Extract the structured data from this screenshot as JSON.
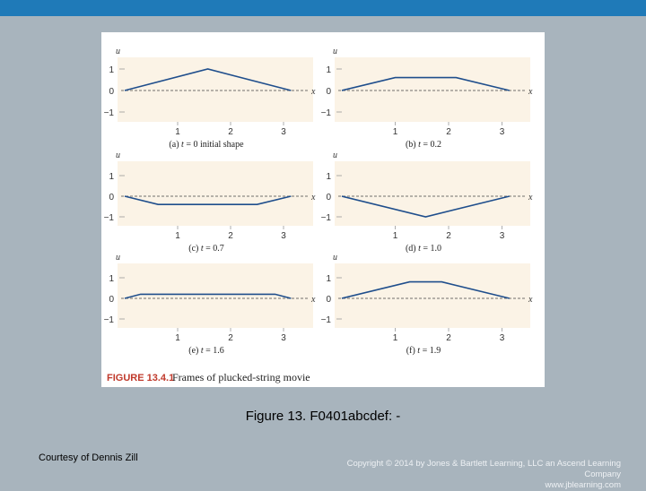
{
  "slide": {
    "caption": "Figure 13. F0401abcdef: -",
    "courtesy": "Courtesy of Dennis Zill",
    "copyright_line1": "Copyright © 2014 by Jones & Bartlett Learning, LLC an Ascend Learning Company",
    "copyright_line2": "www.jblearning.com",
    "figure_label": "FIGURE 13.4.1",
    "figure_title": "Frames of plucked-string movie",
    "colors": {
      "top_bar": "#1f7ab8",
      "background": "#a8b4bd",
      "curve": "#1f4e8c",
      "figure_label": "#c0392b",
      "panel_fill": "#fbf3e6"
    }
  },
  "chart_data": [
    {
      "type": "line",
      "panel": "a",
      "caption_prefix": "(a)",
      "caption_var": "t",
      "caption_rest": " = 0 initial shape",
      "xlabel": "x",
      "ylabel": "u",
      "xlim": [
        0,
        3.3
      ],
      "ylim": [
        -1.3,
        1.3
      ],
      "x_ticks": [
        "1",
        "2",
        "3"
      ],
      "y_ticks": [
        "1",
        "0",
        "−1"
      ],
      "x": [
        0,
        1.57,
        3.14
      ],
      "y": [
        0,
        1,
        0
      ]
    },
    {
      "type": "line",
      "panel": "b",
      "caption_prefix": "(b)",
      "caption_var": "t",
      "caption_rest": " = 0.2",
      "xlabel": "x",
      "ylabel": "u",
      "xlim": [
        0,
        3.3
      ],
      "ylim": [
        -1.3,
        1.3
      ],
      "x_ticks": [
        "1",
        "2",
        "3"
      ],
      "y_ticks": [
        "1",
        "0",
        "−1"
      ],
      "x": [
        0,
        1,
        2.14,
        3.14
      ],
      "y": [
        0,
        0.6,
        0.6,
        0
      ]
    },
    {
      "type": "line",
      "panel": "c",
      "caption_prefix": "(c)",
      "caption_var": "t",
      "caption_rest": " = 0.7",
      "xlabel": "x",
      "ylabel": "u",
      "xlim": [
        0,
        3.3
      ],
      "ylim": [
        -1.3,
        1.3
      ],
      "x_ticks": [
        "1",
        "2",
        "3"
      ],
      "y_ticks": [
        "1",
        "0",
        "−1"
      ],
      "x": [
        0,
        0.63,
        2.5,
        3.14
      ],
      "y": [
        0,
        -0.4,
        -0.4,
        0
      ]
    },
    {
      "type": "line",
      "panel": "d",
      "caption_prefix": "(d)",
      "caption_var": "t",
      "caption_rest": " = 1.0",
      "xlabel": "x",
      "ylabel": "u",
      "xlim": [
        0,
        3.3
      ],
      "ylim": [
        -1.3,
        1.3
      ],
      "x_ticks": [
        "1",
        "2",
        "3"
      ],
      "y_ticks": [
        "1",
        "0",
        "−1"
      ],
      "x": [
        0,
        1.57,
        3.14
      ],
      "y": [
        0,
        -1,
        0
      ]
    },
    {
      "type": "line",
      "panel": "e",
      "caption_prefix": "(e)",
      "caption_var": "t",
      "caption_rest": " = 1.6",
      "xlabel": "x",
      "ylabel": "u",
      "xlim": [
        0,
        3.3
      ],
      "ylim": [
        -1.3,
        1.3
      ],
      "x_ticks": [
        "1",
        "2",
        "3"
      ],
      "y_ticks": [
        "1",
        "0",
        "−1"
      ],
      "x": [
        0,
        0.3,
        2.84,
        3.14
      ],
      "y": [
        0,
        0.2,
        0.2,
        0
      ]
    },
    {
      "type": "line",
      "panel": "f",
      "caption_prefix": "(f)",
      "caption_var": "t",
      "caption_rest": " = 1.9",
      "xlabel": "x",
      "ylabel": "u",
      "xlim": [
        0,
        3.3
      ],
      "ylim": [
        -1.3,
        1.3
      ],
      "x_ticks": [
        "1",
        "2",
        "3"
      ],
      "y_ticks": [
        "1",
        "0",
        "−1"
      ],
      "x": [
        0,
        1.27,
        1.87,
        3.14
      ],
      "y": [
        0,
        0.8,
        0.8,
        0
      ]
    }
  ]
}
